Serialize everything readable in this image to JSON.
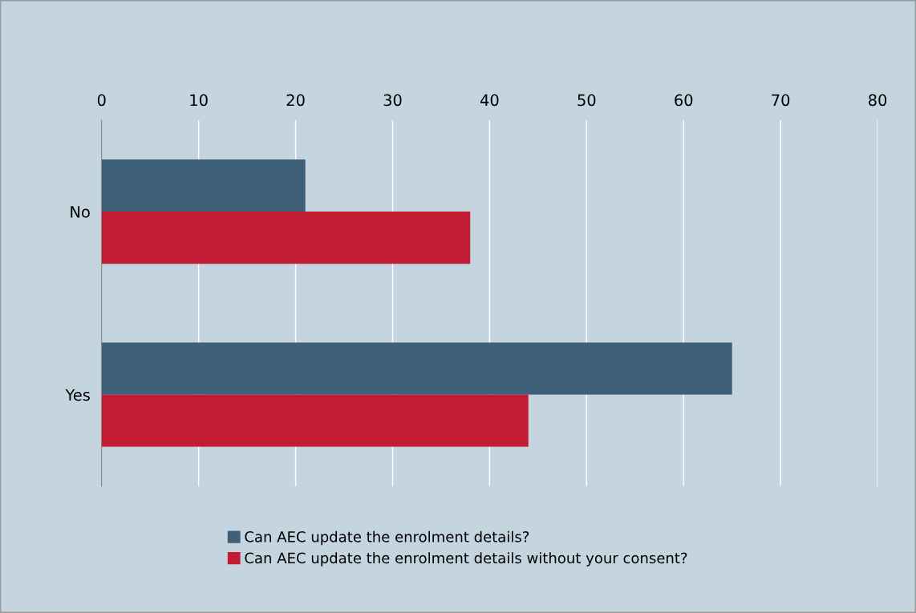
{
  "chart_data": {
    "type": "bar",
    "orientation": "horizontal",
    "categories": [
      "No",
      "Yes"
    ],
    "series": [
      {
        "name": "Can AEC update the enrolment details?",
        "color": "#3f6079",
        "values": [
          21,
          65
        ]
      },
      {
        "name": "Can AEC update the enrolment details without your consent?",
        "color": "#c21b34",
        "values": [
          38,
          44
        ]
      }
    ],
    "xlim": [
      0,
      80
    ],
    "xticks": [
      0,
      10,
      20,
      30,
      40,
      50,
      60,
      70,
      80
    ],
    "grid": "x",
    "legend": "bottom"
  }
}
